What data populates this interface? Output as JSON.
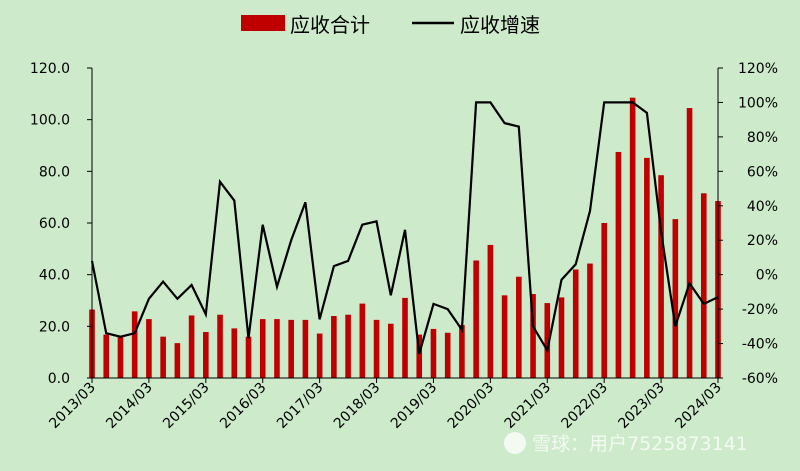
{
  "chart_data": {
    "type": "bar+line",
    "legend": {
      "placement": "top-center",
      "bar_label": "应收合计",
      "line_label": "应收增速"
    },
    "colors": {
      "bar": "#c00000",
      "line": "#000000",
      "background": "#cdeacb"
    },
    "left_axis": {
      "min": 0,
      "max": 120,
      "ticks": [
        "0.0",
        "20.0",
        "40.0",
        "60.0",
        "80.0",
        "100.0",
        "120.0"
      ]
    },
    "right_axis": {
      "min": -60,
      "max": 120,
      "ticks": [
        "-60%",
        "-40%",
        "-20%",
        "0%",
        "20%",
        "40%",
        "60%",
        "80%",
        "100%",
        "120%"
      ]
    },
    "x_tick_labels": [
      "2013/03",
      "2014/03",
      "2015/03",
      "2016/03",
      "2017/03",
      "2018/03",
      "2019/03",
      "2020/03",
      "2021/03",
      "2022/03",
      "2023/03",
      "2024/03"
    ],
    "series": [
      {
        "name": "应收合计",
        "kind": "bar",
        "axis": "left",
        "values": [
          26.5,
          16.8,
          16.3,
          25.8,
          22.8,
          16.0,
          13.5,
          24.2,
          17.8,
          24.5,
          19.2,
          16.0,
          22.8,
          22.8,
          22.5,
          22.5,
          17.2,
          24.0,
          24.5,
          28.8,
          22.5,
          21.0,
          31.0,
          16.8,
          19.0,
          17.5,
          20.5,
          45.5,
          51.5,
          32.0,
          39.2,
          32.5,
          29.0,
          31.2,
          42.0,
          44.3,
          60.0,
          87.5,
          108.5,
          85.2,
          78.5,
          61.5,
          104.5,
          71.5,
          68.5
        ]
      },
      {
        "name": "应收增速",
        "kind": "line",
        "axis": "right",
        "values": [
          8,
          -34,
          -36,
          -34,
          -14,
          -4,
          -14,
          -6,
          -23,
          54,
          43,
          -37,
          29,
          -7,
          20,
          42,
          -26,
          5,
          8,
          29,
          31,
          -12,
          26,
          -46,
          -17,
          -20,
          -32,
          100,
          100,
          88,
          86,
          -30,
          -44,
          -3,
          6,
          37,
          100,
          100,
          100,
          94,
          25,
          -30,
          -5,
          -17,
          -13
        ]
      }
    ],
    "watermark": "雪球：用户7525873141"
  }
}
